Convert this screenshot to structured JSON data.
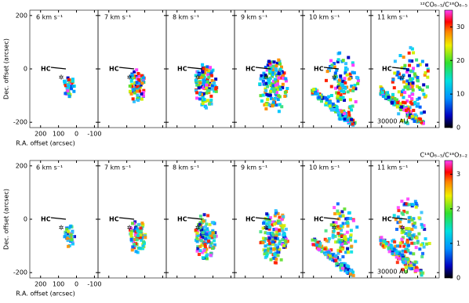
{
  "x_axis_label": "R.A. offset (arcsec)",
  "y_axis_label": "Dec. offset (arcsec)",
  "xlim": [
    260,
    -120
  ],
  "xticks": [
    200,
    100,
    0,
    -100
  ],
  "ylim": [
    220,
    -220
  ],
  "yticks": [
    200,
    0,
    -200
  ],
  "source_label": "HC",
  "rows": [
    {
      "colorbar_title": "¹²CO₆₋₅/C¹⁸O₆₋₅",
      "colorbar_lim": [
        0,
        35
      ],
      "colorbar_ticks": [
        0,
        10,
        20,
        30
      ],
      "panels": [
        "6 km s⁻¹",
        "7 km s⁻¹",
        "8 km s⁻¹",
        "9 km s⁻¹",
        "10 km s⁻¹",
        "11 km s⁻¹"
      ],
      "scale_label": "30000 AU"
    },
    {
      "colorbar_title": "C¹⁸O₆₋₅/C¹⁸O₃₋₂",
      "colorbar_lim": [
        0,
        3.4
      ],
      "colorbar_ticks": [
        0,
        1,
        2,
        3
      ],
      "panels": [
        "6 km s⁻¹",
        "7 km s⁻¹",
        "8 km s⁻¹",
        "9 km s⁻¹",
        "10 km s⁻¹",
        "11 km s⁻¹"
      ],
      "scale_label": "30000 AU"
    }
  ]
}
